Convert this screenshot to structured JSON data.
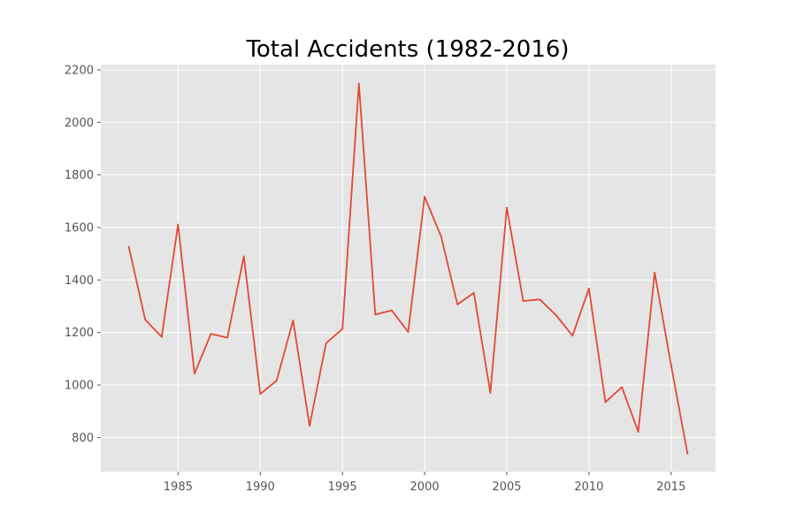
{
  "chart_data": {
    "type": "line",
    "title": "Total Accidents (1982-2016)",
    "xlabel": "",
    "ylabel": "",
    "xlim": [
      1980.3,
      2017.7
    ],
    "ylim": [
      670,
      2220
    ],
    "x_ticks": [
      1985,
      1990,
      1995,
      2000,
      2005,
      2010,
      2015
    ],
    "y_ticks": [
      800,
      1000,
      1200,
      1400,
      1600,
      1800,
      2000,
      2200
    ],
    "grid": true,
    "legend": "none",
    "colors": {
      "line": "#e24a33",
      "plot_bg": "#e5e5e5",
      "grid": "#ffffff"
    },
    "series": [
      {
        "x": [
          1982,
          1983,
          1984,
          1985,
          1986,
          1987,
          1988,
          1989,
          1990,
          1991,
          1992,
          1993,
          1994,
          1995,
          1996,
          1997,
          1998,
          1999,
          2000,
          2001,
          2002,
          2003,
          2004,
          2005,
          2006,
          2007,
          2008,
          2009,
          2010,
          2011,
          2012,
          2013,
          2014,
          2015,
          2016
        ],
        "values": [
          1527,
          1249,
          1183,
          1611,
          1043,
          1195,
          1180,
          1490,
          966,
          1017,
          1246,
          845,
          1159,
          1214,
          2148,
          1268,
          1284,
          1202,
          1717,
          1566,
          1307,
          1351,
          970,
          1675,
          1320,
          1326,
          1266,
          1188,
          1367,
          935,
          992,
          822,
          1428,
          1075,
          738
        ]
      }
    ]
  }
}
